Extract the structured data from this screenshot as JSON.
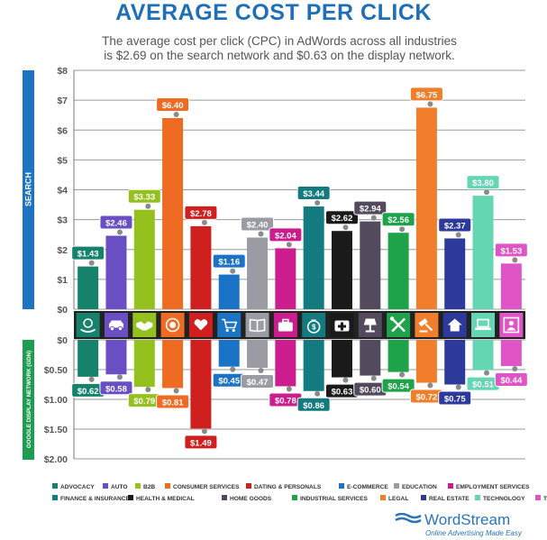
{
  "header": {
    "title": "AVERAGE COST PER CLICK",
    "subtitle_line1": "The average cost per click (CPC) in AdWords across all industries",
    "subtitle_line2": "is $2.69 on the search network and $0.63 on the display network."
  },
  "brand": {
    "name": "WordStream",
    "tagline": "Online Advertising Made Easy"
  },
  "colors": {
    "title": "#1f6fb6",
    "search_band": "#1d72c2",
    "gdn_band": "#1e9c52",
    "grid": "#9a9a9a",
    "icon_strip": "#222222"
  },
  "chart_data": {
    "type": "bar",
    "title": "AVERAGE COST PER CLICK",
    "panels": [
      {
        "name": "SEARCH",
        "ylim": [
          0,
          8
        ],
        "ticks": [
          "$0",
          "$1",
          "$2",
          "$3",
          "$4",
          "$5",
          "$6",
          "$7",
          "$8"
        ]
      },
      {
        "name": "GOOGLE DISPLAY NETWORK (GDN)",
        "ylim": [
          0,
          2
        ],
        "inverted": true,
        "ticks": [
          "$0",
          "$0.50",
          "$1.00",
          "$1.50",
          "$2.00"
        ]
      }
    ],
    "categories": [
      {
        "name": "ADVOCACY",
        "color": "#17826b",
        "icon": "hand-globe-icon",
        "search": 1.43,
        "display": 0.62,
        "search_label": "$1.43",
        "display_label": "$0.62"
      },
      {
        "name": "AUTO",
        "color": "#6a4fc4",
        "icon": "car-icon",
        "search": 2.46,
        "display": 0.58,
        "search_label": "$2.46",
        "display_label": "$0.58"
      },
      {
        "name": "B2B",
        "color": "#95c11f",
        "icon": "handshake-icon",
        "search": 3.33,
        "display": 0.79,
        "search_label": "$3.33",
        "display_label": "$0.79"
      },
      {
        "name": "CONSUMER SERVICES",
        "color": "#ef6a22",
        "icon": "headset-icon",
        "search": 6.4,
        "display": 0.81,
        "search_label": "$6.40",
        "display_label": "$0.81"
      },
      {
        "name": "DATING & PERSONALS",
        "color": "#cf1f1f",
        "icon": "heart-icon",
        "search": 2.78,
        "display": 1.49,
        "search_label": "$2.78",
        "display_label": "$1.49"
      },
      {
        "name": "E-COMMERCE",
        "color": "#1a73c4",
        "icon": "cart-icon",
        "search": 1.16,
        "display": 0.45,
        "search_label": "$1.16",
        "display_label": "$0.45"
      },
      {
        "name": "EDUCATION",
        "color": "#9b9ca3",
        "icon": "book-icon",
        "search": 2.4,
        "display": 0.47,
        "search_label": "$2.40",
        "display_label": "$0.47"
      },
      {
        "name": "EMPLOYMENT SERVICES",
        "color": "#cc1d8e",
        "icon": "briefcase-icon",
        "search": 2.04,
        "display": 0.78,
        "search_label": "$2.04",
        "display_label": "$0.78"
      },
      {
        "name": "FINANCE & INSURANCE",
        "color": "#137b7f",
        "icon": "money-bag-icon",
        "search": 3.44,
        "display": 0.86,
        "search_label": "$3.44",
        "display_label": "$0.86"
      },
      {
        "name": "HEALTH & MEDICAL",
        "color": "#1a1a1a",
        "icon": "medical-kit-icon",
        "search": 2.62,
        "display": 0.63,
        "search_label": "$2.62",
        "display_label": "$0.63"
      },
      {
        "name": "HOME GOODS",
        "color": "#544a5e",
        "icon": "lamp-icon",
        "search": 2.94,
        "display": 0.6,
        "search_label": "$2.94",
        "display_label": "$0.60"
      },
      {
        "name": "INDUSTRIAL SERVICES",
        "color": "#1ea24a",
        "icon": "tools-icon",
        "search": 2.56,
        "display": 0.54,
        "search_label": "$2.56",
        "display_label": "$0.54"
      },
      {
        "name": "LEGAL",
        "color": "#f07e2b",
        "icon": "gavel-icon",
        "search": 6.75,
        "display": 0.72,
        "search_label": "$6.75",
        "display_label": "$0.72"
      },
      {
        "name": "REAL ESTATE",
        "color": "#2d3a9b",
        "icon": "house-icon",
        "search": 2.37,
        "display": 0.75,
        "search_label": "$2.37",
        "display_label": "$0.75"
      },
      {
        "name": "TECHNOLOGY",
        "color": "#64d6b3",
        "icon": "laptop-icon",
        "search": 3.8,
        "display": 0.51,
        "search_label": "$3.80",
        "display_label": "$0.51"
      },
      {
        "name": "TRAVEL & HOSPITALITY",
        "color": "#e055c6",
        "icon": "person-icon",
        "search": 1.53,
        "display": 0.44,
        "search_label": "$1.53",
        "display_label": "$0.44"
      }
    ],
    "legend_rows": [
      [
        "ADVOCACY",
        "AUTO",
        "B2B",
        "CONSUMER SERVICES",
        "DATING & PERSONALS",
        "E-COMMERCE",
        "EDUCATION",
        "EMPLOYMENT SERVICES"
      ],
      [
        "FINANCE & INSURANCE",
        "HEALTH & MEDICAL",
        "HOME GOODS",
        "INDUSTRIAL SERVICES",
        "LEGAL",
        "REAL ESTATE",
        "TECHNOLOGY",
        "TRAVEL & HOSPITALITY"
      ]
    ],
    "legend_position": "bottom",
    "grid": true
  }
}
